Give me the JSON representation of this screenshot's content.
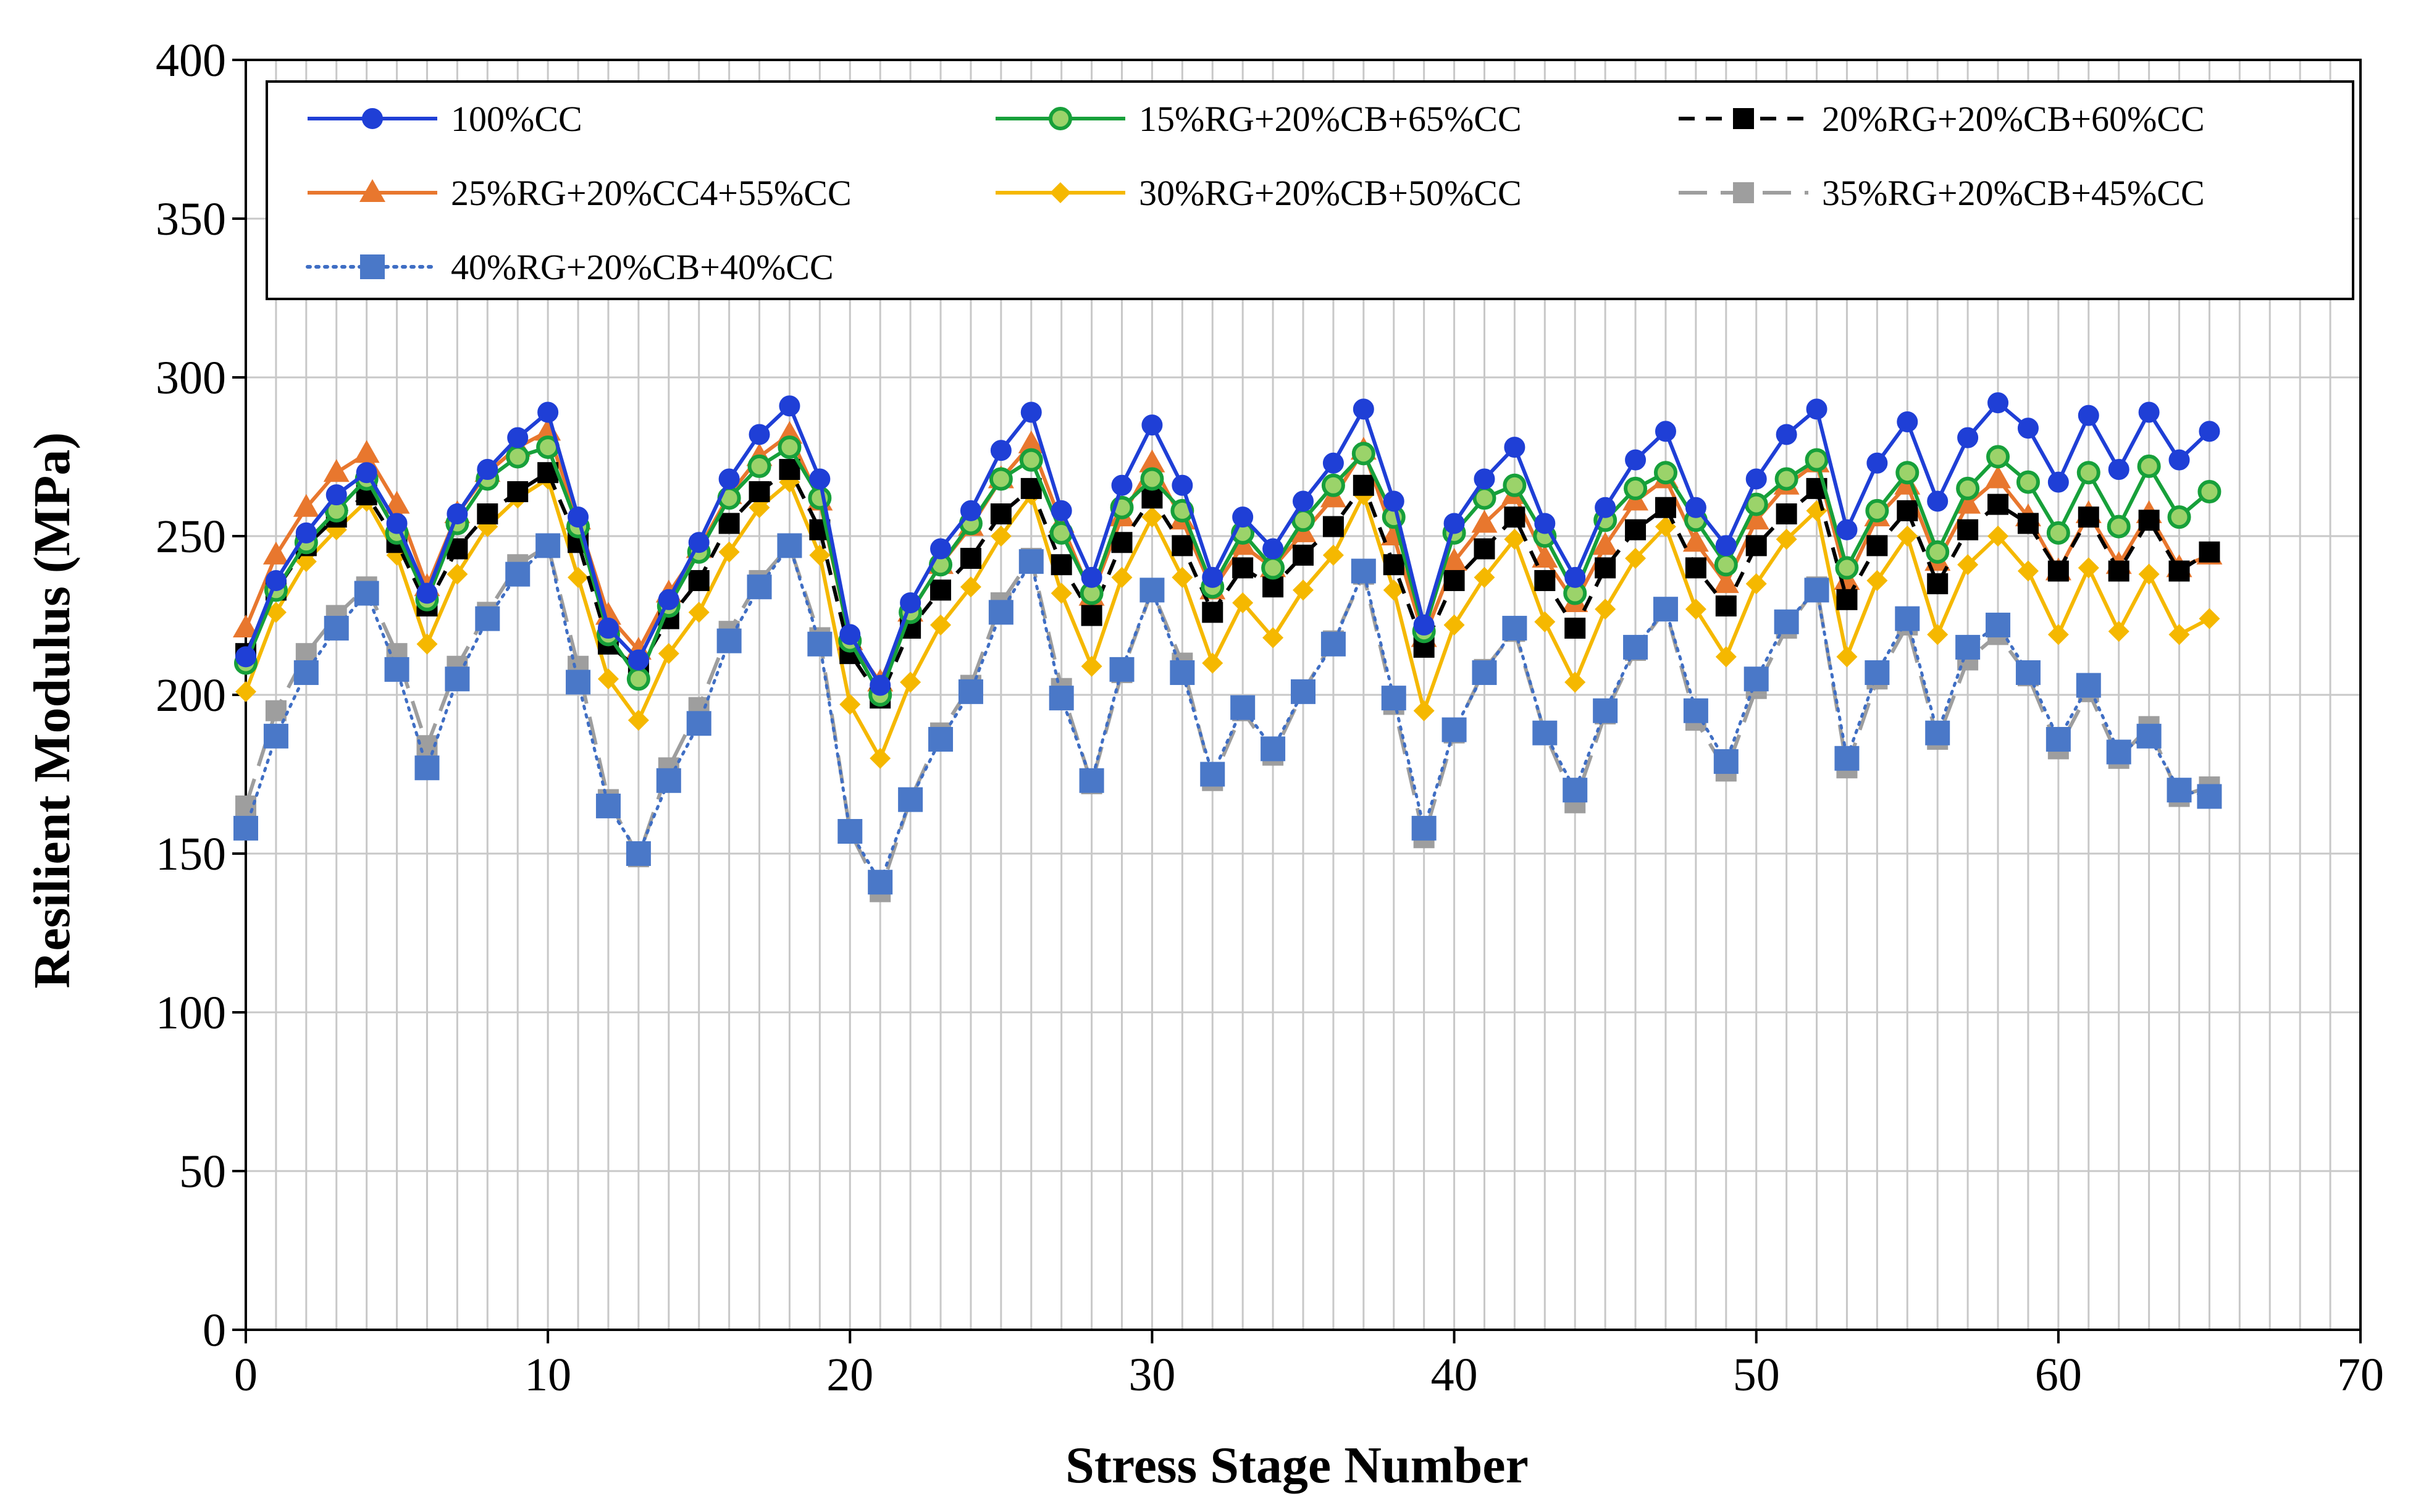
{
  "chart_data": {
    "type": "line",
    "title": "",
    "xlabel": "Stress Stage Number",
    "ylabel": "Resilient Modulus (MPa)",
    "xlim": [
      0,
      70
    ],
    "ylim": [
      0,
      400
    ],
    "x_ticks": [
      "0",
      "10",
      "20",
      "30",
      "40",
      "50",
      "60",
      "70"
    ],
    "y_ticks": [
      "0",
      "50",
      "100",
      "150",
      "200",
      "250",
      "300",
      "350",
      "400"
    ],
    "grid": true,
    "legend_position": "top",
    "x": [
      0,
      1,
      2,
      3,
      4,
      5,
      6,
      7,
      8,
      9,
      10,
      11,
      12,
      13,
      14,
      15,
      16,
      17,
      18,
      19,
      20,
      21,
      22,
      23,
      24,
      25,
      26,
      27,
      28,
      29,
      30,
      31,
      32,
      33,
      34,
      35,
      36,
      37,
      38,
      39,
      40,
      41,
      42,
      43,
      44,
      45,
      46,
      47,
      48,
      49,
      50,
      51,
      52,
      53,
      54,
      55,
      56,
      57,
      58,
      59,
      60,
      61,
      62,
      63,
      64,
      65
    ],
    "series": [
      {
        "name": "100%CC",
        "color": "#1f3fd6",
        "marker": "circle",
        "dash": "solid",
        "values": [
          212,
          236,
          251,
          263,
          270,
          254,
          232,
          257,
          271,
          281,
          289,
          256,
          221,
          211,
          230,
          248,
          268,
          282,
          291,
          268,
          219,
          203,
          229,
          246,
          258,
          277,
          289,
          258,
          237,
          266,
          285,
          266,
          237,
          256,
          246,
          261,
          273,
          290,
          261,
          222,
          254,
          268,
          278,
          254,
          237,
          259,
          274,
          283,
          259,
          247,
          268,
          282,
          290,
          252,
          273,
          286,
          261,
          281,
          292,
          284,
          267,
          288,
          271,
          289,
          274,
          283
        ]
      },
      {
        "name": "15%RG+20%CB+65%CC",
        "color": "#17a03a",
        "marker": "circle-green",
        "dash": "solid",
        "values": [
          210,
          233,
          248,
          258,
          268,
          251,
          230,
          254,
          268,
          275,
          278,
          253,
          219,
          205,
          228,
          245,
          262,
          272,
          278,
          262,
          217,
          200,
          226,
          241,
          254,
          268,
          274,
          251,
          232,
          259,
          268,
          258,
          234,
          251,
          240,
          255,
          266,
          276,
          256,
          220,
          251,
          262,
          266,
          250,
          232,
          255,
          265,
          270,
          255,
          241,
          260,
          268,
          274,
          240,
          258,
          270,
          245,
          265,
          275,
          267,
          251,
          270,
          253,
          272,
          256,
          264
        ]
      },
      {
        "name": "20%RG+20%CB+60%CC",
        "color": "#000000",
        "marker": "square-black",
        "dash": "dashed",
        "values": [
          213,
          233,
          247,
          256,
          263,
          248,
          228,
          246,
          257,
          264,
          270,
          248,
          216,
          208,
          224,
          236,
          254,
          264,
          271,
          252,
          213,
          199,
          221,
          233,
          243,
          257,
          265,
          241,
          225,
          248,
          262,
          247,
          226,
          240,
          234,
          244,
          253,
          266,
          241,
          215,
          236,
          246,
          256,
          236,
          221,
          240,
          252,
          259,
          240,
          228,
          247,
          257,
          265,
          230,
          247,
          258,
          235,
          252,
          260,
          254,
          239,
          256,
          239,
          255,
          239,
          245
        ]
      },
      {
        "name": "25%RG+20%CC4+55%CC",
        "color": "#e8772e",
        "marker": "triangle",
        "dash": "solid",
        "values": [
          221,
          244,
          259,
          270,
          276,
          260,
          234,
          257,
          270,
          278,
          283,
          255,
          225,
          214,
          232,
          246,
          263,
          275,
          282,
          261,
          217,
          204,
          226,
          241,
          253,
          268,
          279,
          254,
          231,
          256,
          273,
          255,
          233,
          247,
          240,
          251,
          262,
          277,
          250,
          218,
          242,
          254,
          263,
          243,
          229,
          247,
          261,
          268,
          248,
          235,
          255,
          266,
          273,
          236,
          256,
          266,
          242,
          260,
          268,
          256,
          239,
          257,
          241,
          257,
          240,
          244
        ]
      },
      {
        "name": "30%RG+20%CB+50%CC",
        "color": "#f5b800",
        "marker": "diamond",
        "dash": "solid",
        "values": [
          201,
          226,
          242,
          252,
          261,
          244,
          216,
          238,
          253,
          262,
          268,
          237,
          205,
          192,
          213,
          226,
          245,
          259,
          267,
          244,
          197,
          180,
          204,
          222,
          234,
          250,
          263,
          232,
          209,
          237,
          256,
          237,
          210,
          229,
          218,
          233,
          244,
          263,
          233,
          195,
          222,
          237,
          249,
          223,
          204,
          227,
          243,
          253,
          227,
          212,
          235,
          249,
          258,
          212,
          236,
          250,
          219,
          241,
          250,
          239,
          219,
          240,
          220,
          238,
          219,
          224
        ]
      },
      {
        "name": "35%RG+20%CB+45%CC",
        "color": "#9e9e9e",
        "marker": "square-gray",
        "dash": "longdash",
        "values": [
          165,
          195,
          213,
          225,
          234,
          213,
          184,
          209,
          226,
          241,
          247,
          209,
          167,
          149,
          177,
          196,
          220,
          236,
          247,
          218,
          157,
          138,
          167,
          188,
          203,
          229,
          243,
          202,
          172,
          207,
          233,
          210,
          173,
          195,
          181,
          201,
          217,
          238,
          197,
          155,
          188,
          208,
          220,
          188,
          166,
          194,
          214,
          227,
          192,
          176,
          202,
          221,
          234,
          177,
          205,
          222,
          186,
          211,
          219,
          206,
          183,
          201,
          180,
          190,
          168,
          171
        ]
      },
      {
        "name": "40%RG+20%CB+40%CC",
        "color": "#3f6ec4",
        "marker": "square-blue",
        "dash": "dotted",
        "values": [
          158,
          187,
          207,
          221,
          232,
          208,
          177,
          205,
          224,
          238,
          247,
          204,
          165,
          150,
          173,
          191,
          217,
          234,
          247,
          216,
          157,
          141,
          167,
          186,
          201,
          226,
          242,
          199,
          173,
          208,
          233,
          207,
          175,
          196,
          183,
          201,
          216,
          239,
          199,
          158,
          189,
          207,
          221,
          188,
          170,
          195,
          215,
          227,
          195,
          179,
          205,
          223,
          233,
          180,
          207,
          224,
          188,
          215,
          222,
          207,
          186,
          203,
          182,
          187,
          170,
          168
        ]
      }
    ]
  }
}
